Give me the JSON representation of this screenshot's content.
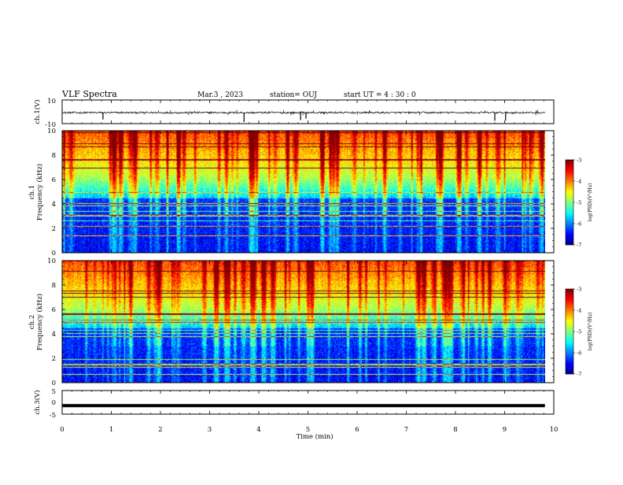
{
  "header": {
    "title": "VLF Spectra",
    "date": "Mar.3 , 2023",
    "station": "station= OUJ",
    "start": "start UT = 4 : 30 : 0"
  },
  "chart_data": {
    "type": "heatmap",
    "x_axis": {
      "label": "Time (min)",
      "range": [
        0,
        10
      ],
      "ticks": [
        "0",
        "1",
        "2",
        "3",
        "4",
        "5",
        "6",
        "7",
        "8",
        "9",
        "10"
      ]
    },
    "panels": [
      {
        "id": "ch1_waveform",
        "type": "line",
        "ylabel": "ch.1(V)",
        "ylim": [
          -10,
          10
        ],
        "y_ticks": [
          "10",
          "-10"
        ],
        "data_x_end_min": 9.82,
        "mean_value": -0.7,
        "amplitude": 0.8
      },
      {
        "id": "ch1_spectrogram",
        "type": "heatmap",
        "ylabel_line1": "ch.1",
        "ylabel_line2": "Frequency (kHz)",
        "ylim": [
          0,
          10
        ],
        "y_ticks": [
          "0",
          "2",
          "4",
          "6",
          "8",
          "10"
        ],
        "data_x_end_min": 9.82,
        "colorbar": {
          "label": "log(PSD)(V²/Hz)",
          "range": [
            -7,
            -3
          ],
          "ticks": [
            "-3",
            "-4",
            "-5",
            "-6",
            "-7"
          ]
        }
      },
      {
        "id": "ch2_spectrogram",
        "type": "heatmap",
        "ylabel_line1": "ch.2",
        "ylabel_line2": "Frequency (kHz)",
        "ylim": [
          0,
          10
        ],
        "y_ticks": [
          "0",
          "2",
          "4",
          "6",
          "8",
          "10"
        ],
        "data_x_end_min": 9.82,
        "colorbar": {
          "label": "log(PSD)(V²/Hz)",
          "range": [
            -7,
            -3
          ],
          "ticks": [
            "-3",
            "-4",
            "-5",
            "-6",
            "-7"
          ]
        }
      },
      {
        "id": "ch3_waveform",
        "type": "line",
        "ylabel": "ch.3(V)",
        "ylim": [
          -5,
          5
        ],
        "y_ticks": [
          "5",
          "0",
          "-5"
        ],
        "data_x_end_min": 9.82,
        "mean_value": -1.4
      }
    ]
  }
}
